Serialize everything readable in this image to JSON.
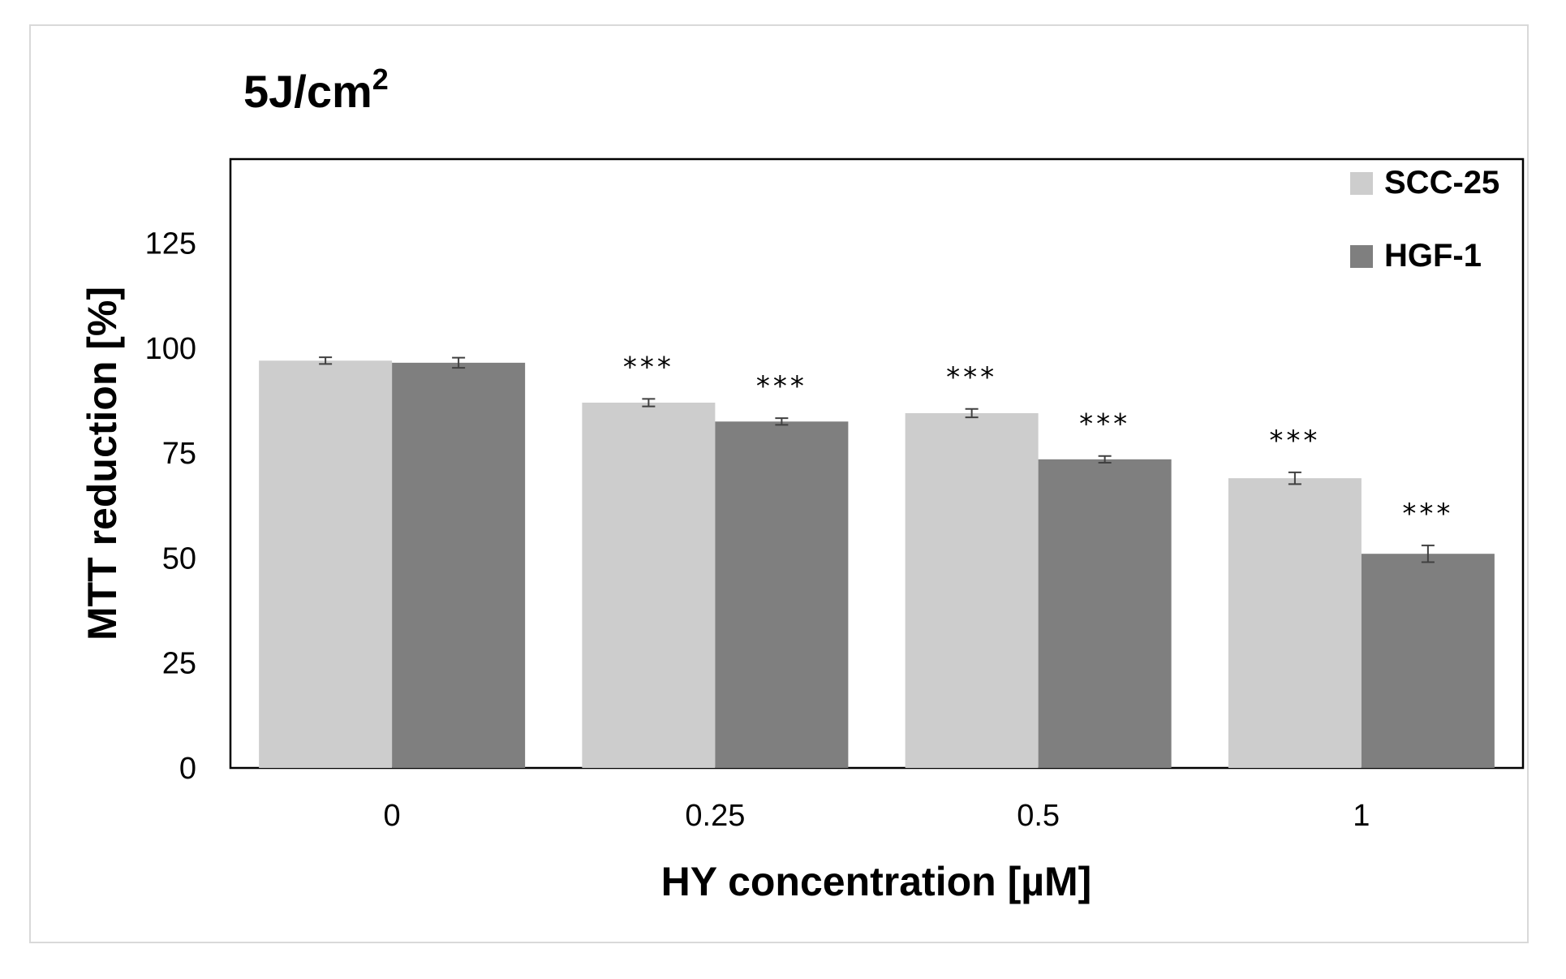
{
  "chart_data": {
    "type": "bar",
    "title": "5J/cm",
    "title_superscript": "2",
    "xlabel": "HY concentration [µM]",
    "ylabel": "MTT reduction [%]",
    "categories": [
      "0",
      "0.25",
      "0.5",
      "1"
    ],
    "ylim": [
      0,
      145
    ],
    "yticks": [
      0,
      25,
      50,
      75,
      100,
      125
    ],
    "grid": false,
    "legend_position": "top-right",
    "series": [
      {
        "name": "SCC-25",
        "color": "#cdcdcd",
        "values": [
          97,
          87,
          84.5,
          69
        ],
        "errors": [
          0.8,
          0.9,
          1.0,
          1.4
        ],
        "significance": [
          "",
          "***",
          "***",
          "***"
        ]
      },
      {
        "name": "HGF-1",
        "color": "#7f7f7f",
        "values": [
          96.5,
          82.5,
          73.5,
          51
        ],
        "errors": [
          1.2,
          0.8,
          0.8,
          2.0
        ],
        "significance": [
          "",
          "***",
          "***",
          "***"
        ]
      }
    ]
  }
}
